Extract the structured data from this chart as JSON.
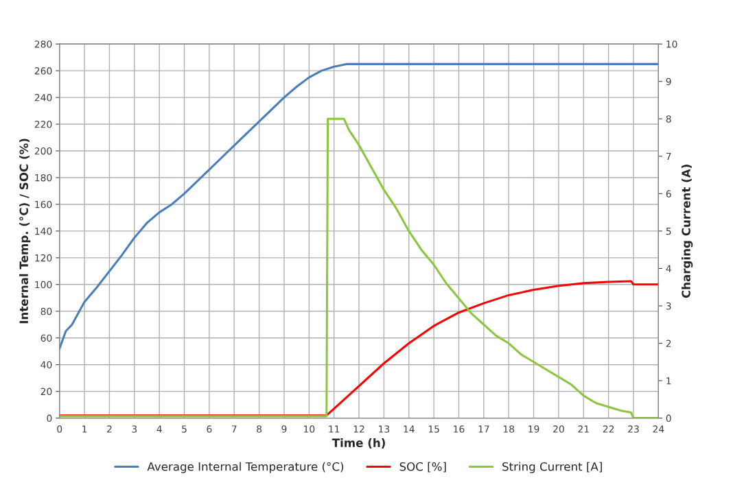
{
  "chart_data": {
    "type": "line",
    "xlabel": "Time (h)",
    "ylabel": "Internal Temp. (°C) / SOC (%)",
    "y2label": "Charging Current (A)",
    "xlim": [
      0,
      24
    ],
    "xticks": [
      0,
      1,
      2,
      3,
      4,
      5,
      6,
      7,
      8,
      9,
      10,
      11,
      12,
      13,
      14,
      15,
      16,
      17,
      18,
      19,
      20,
      21,
      22,
      23,
      24
    ],
    "ylim": [
      0,
      280
    ],
    "yticks": [
      0,
      20,
      40,
      60,
      80,
      100,
      120,
      140,
      160,
      180,
      200,
      220,
      240,
      260,
      280
    ],
    "y2lim": [
      0,
      10
    ],
    "y2ticks": [
      0,
      1,
      2,
      3,
      4,
      5,
      6,
      7,
      8,
      9,
      10
    ],
    "grid": true,
    "legend": "bottom",
    "marker": "none",
    "line_style": "solid",
    "series": [
      {
        "name": "Average Internal Temperature (°C)",
        "color": "#4a7ebb",
        "x": [
          0,
          0.25,
          0.5,
          1,
          1.5,
          2,
          2.5,
          3,
          3.5,
          4,
          4.5,
          5,
          5.5,
          6,
          6.5,
          7,
          7.5,
          8,
          8.5,
          9,
          9.5,
          10,
          10.5,
          11,
          11.5,
          12,
          13,
          14,
          15,
          16,
          17,
          18,
          19,
          20,
          21,
          22,
          23,
          24
        ],
        "values": [
          52,
          65,
          70,
          87,
          98,
          110,
          122,
          135,
          146,
          154,
          160,
          168,
          177,
          186,
          195,
          204,
          213,
          222,
          231,
          240,
          248,
          255,
          260,
          263,
          265,
          265,
          265,
          265,
          265,
          265,
          265,
          265,
          265,
          265,
          265,
          265,
          265,
          265
        ]
      },
      {
        "name": "SOC [%]",
        "color": "#ff0000",
        "x": [
          0,
          10.7,
          11,
          12,
          13,
          14,
          15,
          16,
          17,
          18,
          19,
          20,
          21,
          22,
          22.9,
          23,
          24
        ],
        "values": [
          2,
          2,
          7,
          24,
          41,
          56,
          69,
          79,
          86,
          92,
          96,
          99,
          101,
          102,
          102.5,
          100,
          100
        ]
      },
      {
        "name": "String Current [A]",
        "color": "#8cc63f",
        "axis": "y2",
        "x": [
          0,
          10.7,
          10.75,
          11.4,
          11.6,
          12,
          12.5,
          13,
          13.5,
          14,
          14.5,
          15,
          15.5,
          16,
          16.5,
          17,
          17.5,
          18,
          18.5,
          19,
          19.5,
          20,
          20.5,
          21,
          21.5,
          22,
          22.5,
          22.9,
          23,
          24
        ],
        "values": [
          0.05,
          0.05,
          8,
          8,
          7.7,
          7.3,
          6.7,
          6.1,
          5.6,
          5.0,
          4.5,
          4.1,
          3.6,
          3.2,
          2.8,
          2.5,
          2.2,
          2.0,
          1.7,
          1.5,
          1.3,
          1.1,
          0.9,
          0.6,
          0.4,
          0.3,
          0.2,
          0.15,
          0,
          0
        ]
      }
    ]
  }
}
